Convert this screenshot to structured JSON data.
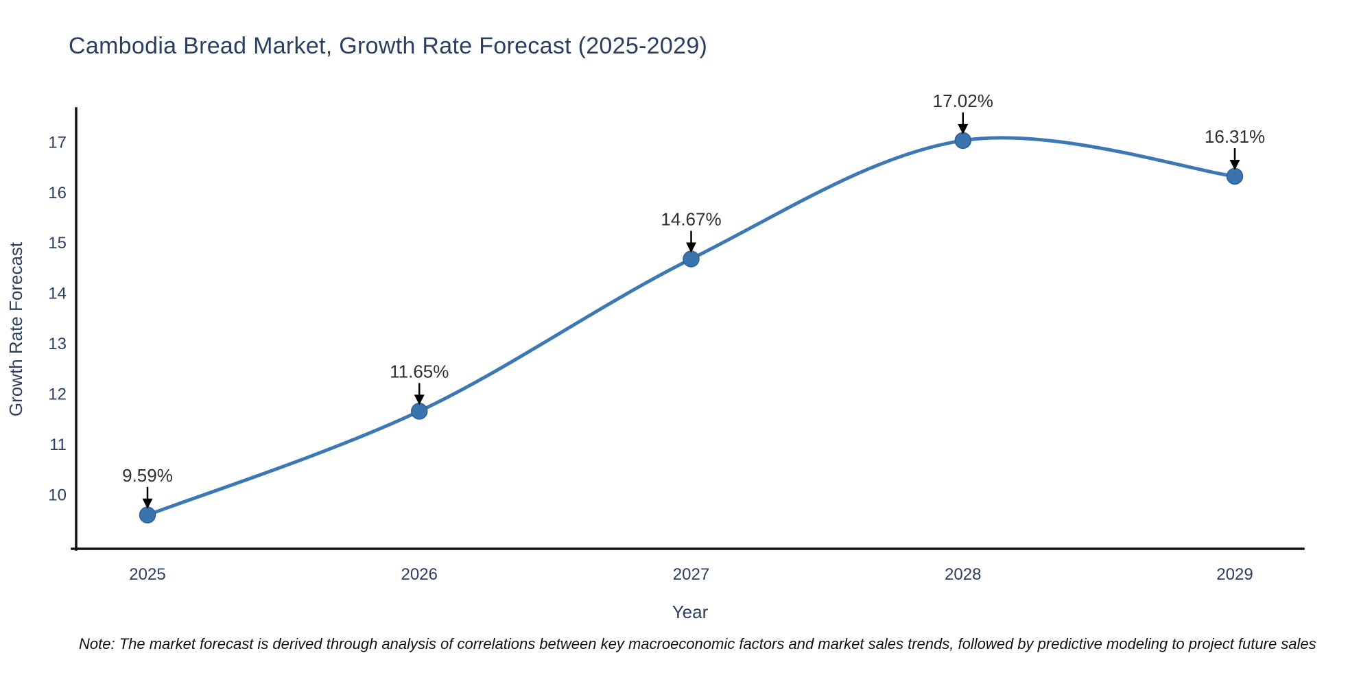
{
  "note": "Note: The market forecast is derived through analysis of correlations between key macroeconomic factors and market sales trends, followed by predictive modeling to project future sales",
  "chart_data": {
    "type": "line",
    "title": "Cambodia Bread Market, Growth Rate Forecast (2025-2029)",
    "xlabel": "Year",
    "ylabel": "Growth Rate Forecast",
    "x": [
      "2025",
      "2026",
      "2027",
      "2028",
      "2029"
    ],
    "values": [
      9.59,
      11.65,
      14.67,
      17.02,
      16.31
    ],
    "point_labels": [
      "9.59%",
      "11.65%",
      "14.67%",
      "17.02%",
      "16.31%"
    ],
    "yticks": [
      10,
      11,
      12,
      13,
      14,
      15,
      16,
      17
    ],
    "ylim": [
      8.92,
      17.63
    ],
    "line_shape": "spline",
    "grid": false,
    "legend_position": "none",
    "colors": {
      "line": "#3c78b4",
      "marker": "#3a74af",
      "marker_edge": "#2d5f92",
      "axis": "#111111",
      "text": "#2a3f5f",
      "annotation": "#2f2f2f",
      "background": "#ffffff"
    }
  }
}
